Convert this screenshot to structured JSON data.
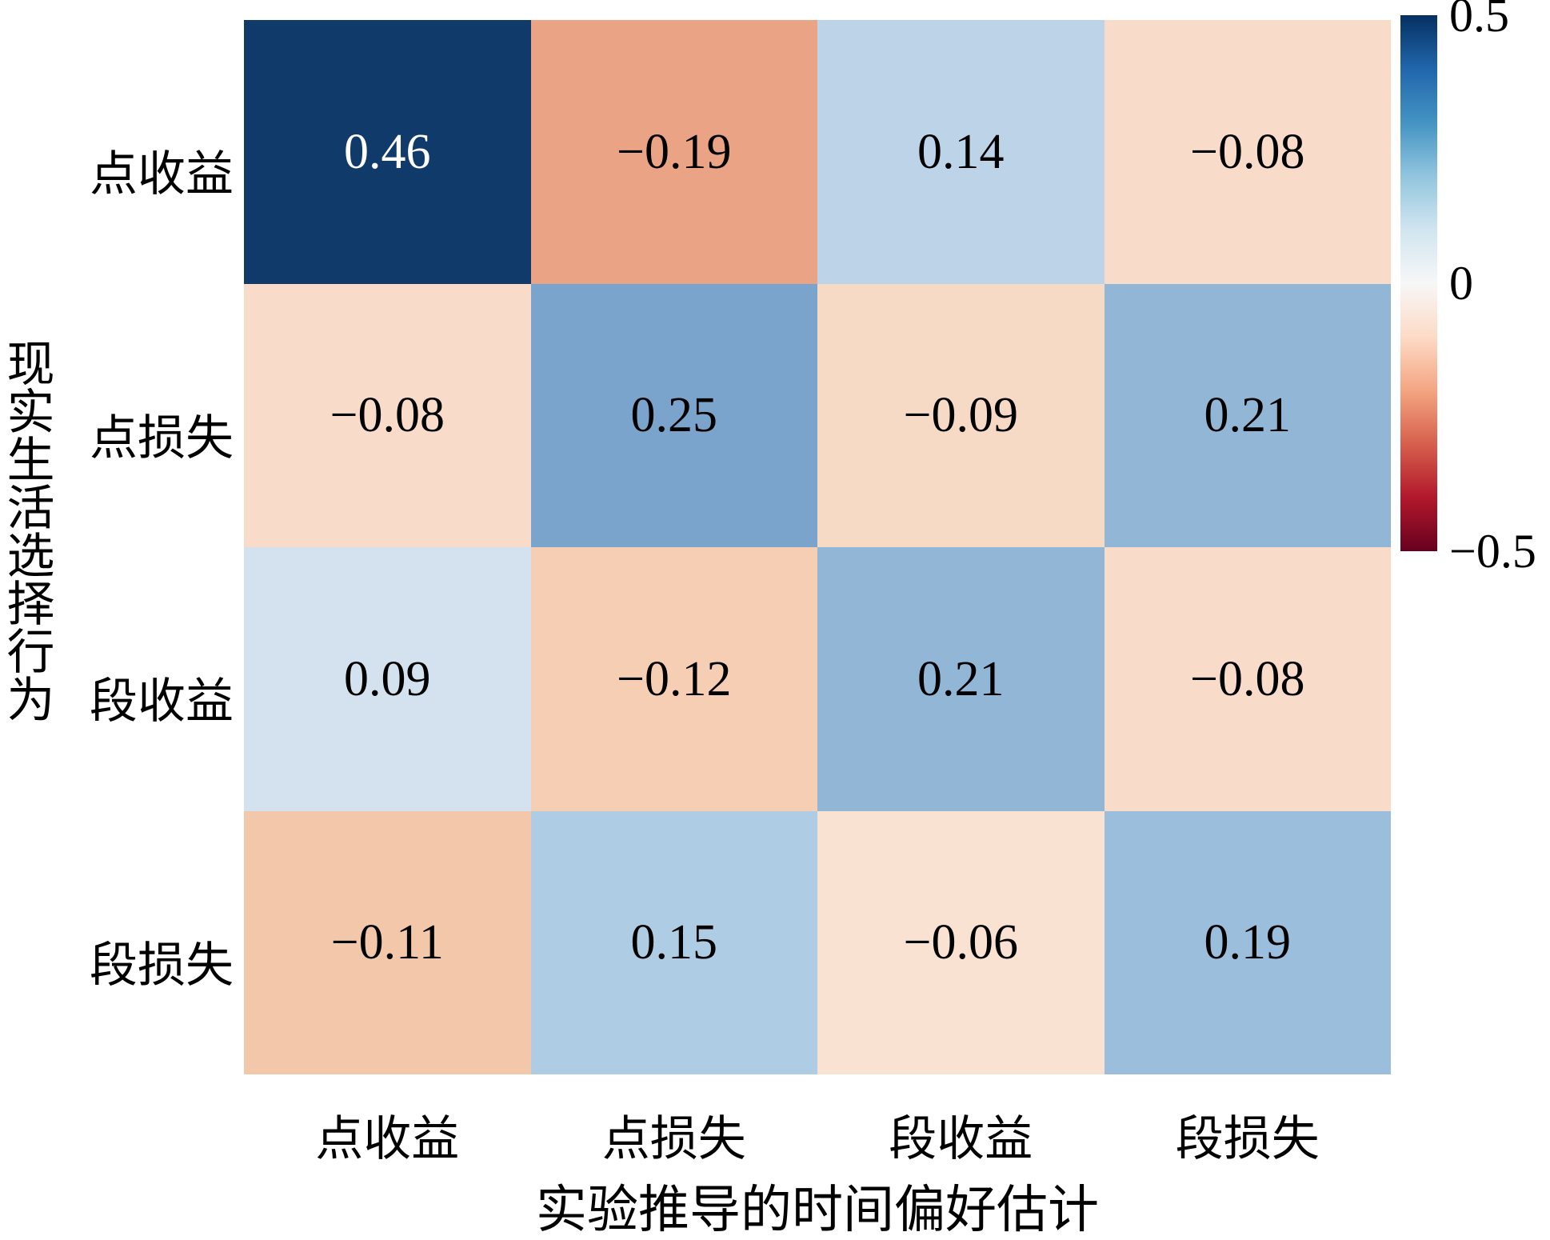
{
  "figure": {
    "background": "#ffffff"
  },
  "chart_data": {
    "type": "heatmap",
    "title": "",
    "xlabel": "实验推导的时间偏好估计",
    "ylabel": "现实生活选择行为",
    "x_categories": [
      "点收益",
      "点损失",
      "段收益",
      "段损失"
    ],
    "y_categories": [
      "点收益",
      "点损失",
      "段收益",
      "段损失"
    ],
    "values": [
      [
        0.46,
        -0.19,
        0.14,
        -0.08
      ],
      [
        -0.08,
        0.25,
        -0.09,
        0.21
      ],
      [
        0.09,
        -0.12,
        0.21,
        -0.08
      ],
      [
        -0.11,
        0.15,
        -0.06,
        0.19
      ]
    ],
    "value_labels": [
      [
        "0.46",
        "−0.19",
        "0.14",
        "−0.08"
      ],
      [
        "−0.08",
        "0.25",
        "−0.09",
        "0.21"
      ],
      [
        "0.09",
        "−0.12",
        "0.21",
        "−0.08"
      ],
      [
        "−0.11",
        "0.15",
        "−0.06",
        "0.19"
      ]
    ],
    "cell_colors": [
      [
        "#0f3a6a",
        "#eaa385",
        "#bdd3e8",
        "#f8dcc9"
      ],
      [
        "#f8dcc9",
        "#7ba4cc",
        "#f7dac5",
        "#92b6d6"
      ],
      [
        "#d4e1ee",
        "#f5ceb3",
        "#92b6d6",
        "#f8dcc9"
      ],
      [
        "#f3c7aa",
        "#aecde5",
        "#f9e2d2",
        "#9cbedd"
      ]
    ],
    "cell_text_colors": [
      [
        "#ffffff",
        "#000000",
        "#000000",
        "#000000"
      ],
      [
        "#000000",
        "#000000",
        "#000000",
        "#000000"
      ],
      [
        "#000000",
        "#000000",
        "#000000",
        "#000000"
      ],
      [
        "#000000",
        "#000000",
        "#000000",
        "#000000"
      ]
    ],
    "grid": false,
    "legend_position": "right-colorbar",
    "colorbar": {
      "colormap": "RdBu",
      "vmin": -0.5,
      "vmax": 0.5,
      "gradient_top_to_bottom": [
        "#053061",
        "#2166ac",
        "#4393c3",
        "#92c5de",
        "#d1e5f0",
        "#f7f7f7",
        "#fddbc7",
        "#f4a582",
        "#d6604d",
        "#b2182b",
        "#67001f"
      ],
      "ticks": [
        {
          "label": "0.5",
          "pos": 0.0
        },
        {
          "label": "0",
          "pos": 0.5
        },
        {
          "label": "−0.5",
          "pos": 1.0
        }
      ]
    }
  }
}
